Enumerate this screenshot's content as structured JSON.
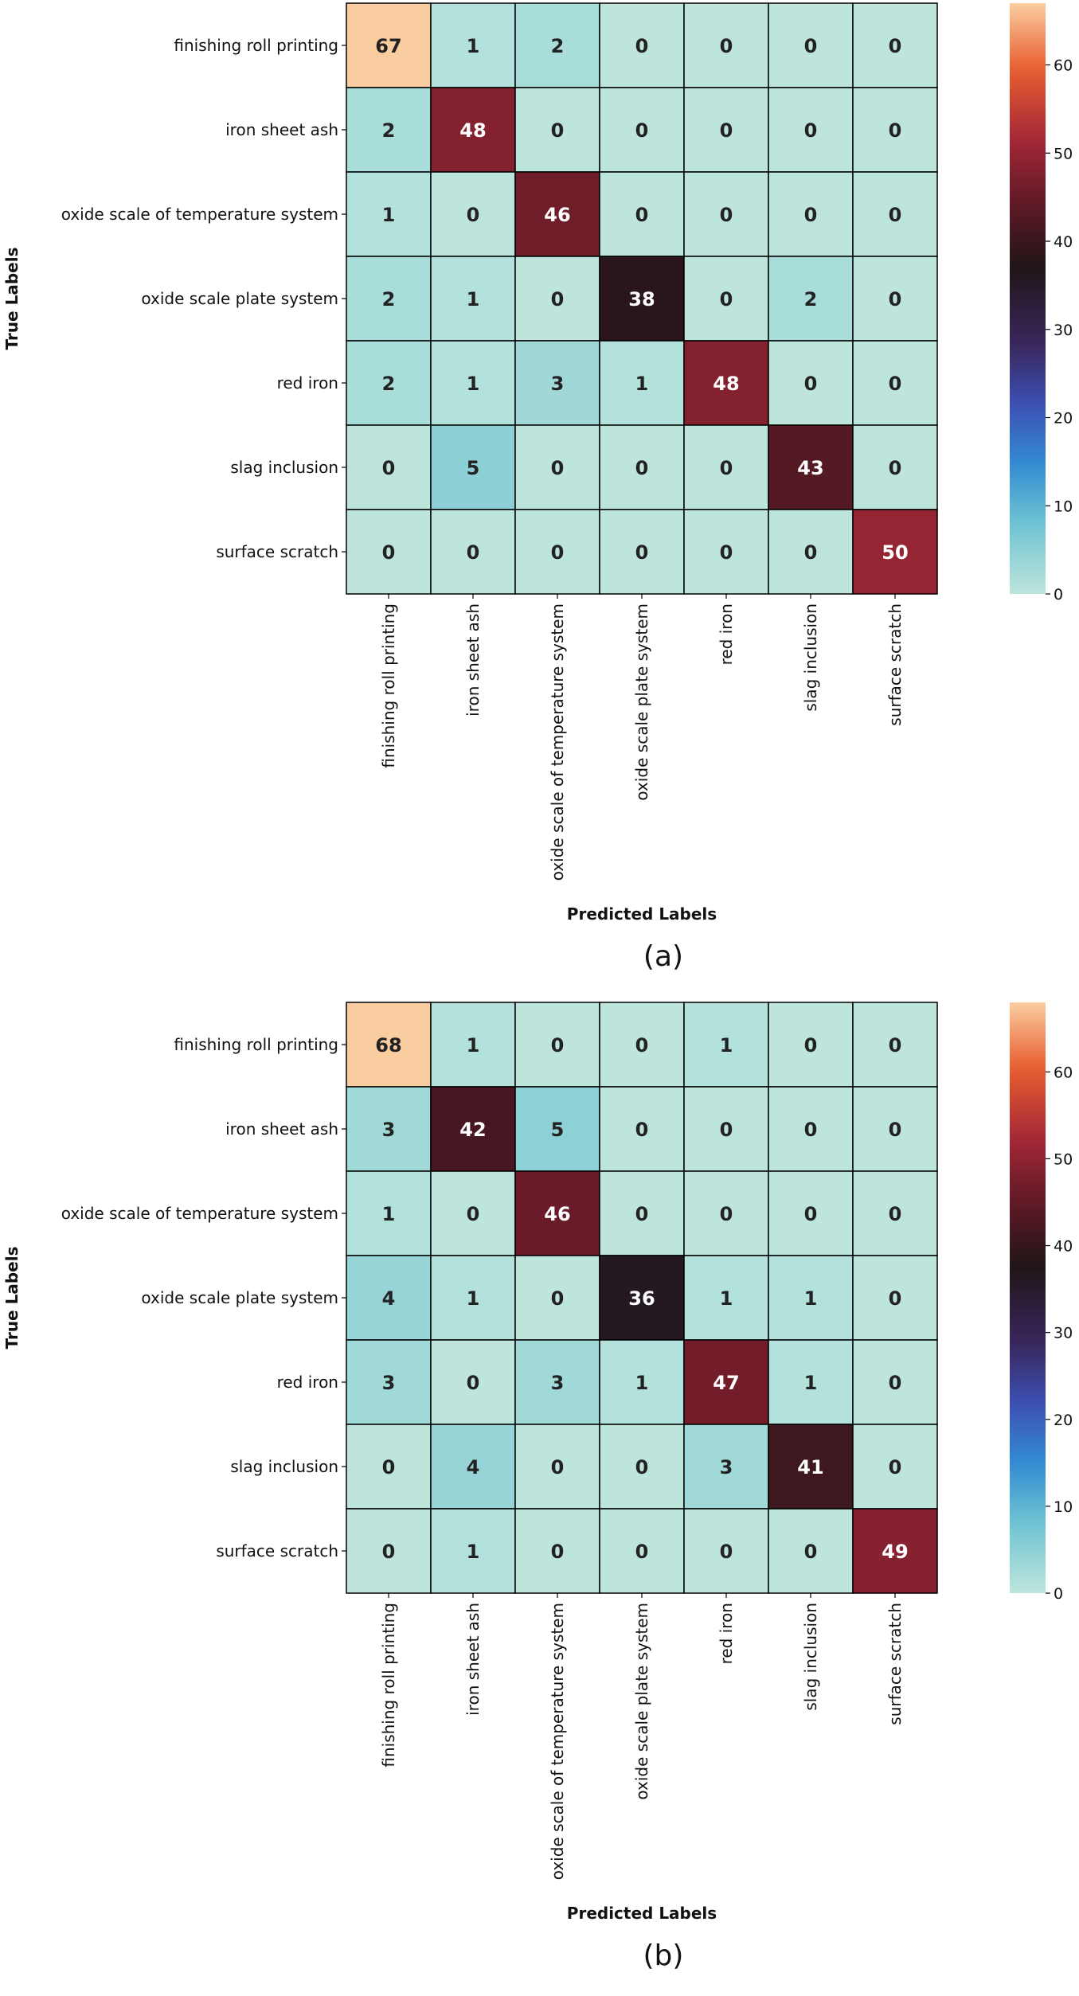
{
  "chart_data": [
    {
      "type": "heatmap",
      "panel": "(a)",
      "xlabel": "Predicted Labels",
      "ylabel": "True Labels",
      "categories": [
        "finishing roll printing",
        "iron sheet ash",
        "oxide scale of temperature system",
        "oxide scale plate system",
        "red iron",
        "slag inclusion",
        "surface scratch"
      ],
      "values": [
        [
          67,
          1,
          2,
          0,
          0,
          0,
          0
        ],
        [
          2,
          48,
          0,
          0,
          0,
          0,
          0
        ],
        [
          1,
          0,
          46,
          0,
          0,
          0,
          0
        ],
        [
          2,
          1,
          0,
          38,
          0,
          2,
          0
        ],
        [
          2,
          1,
          3,
          1,
          48,
          0,
          0
        ],
        [
          0,
          5,
          0,
          0,
          0,
          43,
          0
        ],
        [
          0,
          0,
          0,
          0,
          0,
          0,
          50
        ]
      ],
      "colorbar": {
        "range": [
          0,
          67
        ],
        "ticks": [
          0,
          10,
          20,
          30,
          40,
          50,
          60
        ]
      }
    },
    {
      "type": "heatmap",
      "panel": "(b)",
      "xlabel": "Predicted Labels",
      "ylabel": "True Labels",
      "categories": [
        "finishing roll printing",
        "iron sheet ash",
        "oxide scale of temperature system",
        "oxide scale plate system",
        "red iron",
        "slag inclusion",
        "surface scratch"
      ],
      "values": [
        [
          68,
          1,
          0,
          0,
          1,
          0,
          0
        ],
        [
          3,
          42,
          5,
          0,
          0,
          0,
          0
        ],
        [
          1,
          0,
          46,
          0,
          0,
          0,
          0
        ],
        [
          4,
          1,
          0,
          36,
          1,
          1,
          0
        ],
        [
          3,
          0,
          3,
          1,
          47,
          1,
          0
        ],
        [
          0,
          4,
          0,
          0,
          3,
          41,
          0
        ],
        [
          0,
          1,
          0,
          0,
          0,
          0,
          49
        ]
      ],
      "colorbar": {
        "range": [
          0,
          68
        ],
        "ticks": [
          0,
          10,
          20,
          30,
          40,
          50,
          60
        ]
      }
    }
  ]
}
